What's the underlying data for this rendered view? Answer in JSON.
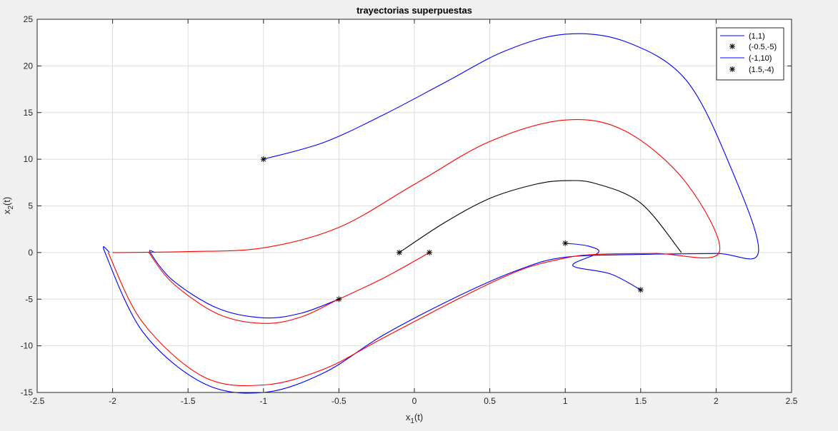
{
  "chart_data": {
    "type": "line",
    "title": "trayectorias superpuestas",
    "xlabel": {
      "base": "x",
      "sub": "1",
      "suffix": "(t)"
    },
    "ylabel": {
      "base": "x",
      "sub": "2",
      "suffix": "(t)"
    },
    "xlim": [
      -2.5,
      2.5
    ],
    "ylim": [
      -15,
      25
    ],
    "xticks": [
      -2.5,
      -2,
      -1.5,
      -1,
      -0.5,
      0,
      0.5,
      1,
      1.5,
      2,
      2.5
    ],
    "yticks": [
      -15,
      -10,
      -5,
      0,
      5,
      10,
      15,
      20,
      25
    ],
    "xtick_labels": [
      "-2.5",
      "-2",
      "-1.5",
      "-1",
      "-0.5",
      "0",
      "0.5",
      "1",
      "1.5",
      "2",
      "2.5"
    ],
    "ytick_labels": [
      "-15",
      "-10",
      "-5",
      "0",
      "5",
      "10",
      "15",
      "20",
      "25"
    ],
    "grid": true,
    "legend_position": "top-right",
    "legend": [
      {
        "label": "(1,1)",
        "kind": "line",
        "color": "#0000ff"
      },
      {
        "label": "(-0.5,-5)",
        "kind": "marker",
        "color": "#000000"
      },
      {
        "label": "(-1,10)",
        "kind": "line",
        "color": "#0000ff"
      },
      {
        "label": "(1.5,-4)",
        "kind": "marker",
        "color": "#000000"
      }
    ],
    "series": [
      {
        "color": "#0000ff",
        "points": [
          [
            -1,
            10
          ],
          [
            -0.6,
            11.8
          ],
          [
            -0.2,
            14.8
          ],
          [
            0.2,
            18.2
          ],
          [
            0.6,
            21.6
          ],
          [
            1,
            23.4
          ],
          [
            1.4,
            22.6
          ],
          [
            1.8,
            18.5
          ],
          [
            2.1,
            9
          ],
          [
            2.28,
            0
          ],
          [
            2,
            -0.1
          ],
          [
            1.5,
            -0.2
          ],
          [
            1,
            -0.5
          ],
          [
            0.7,
            -1.8
          ],
          [
            0.3,
            -4.6
          ],
          [
            -0.2,
            -8.8
          ],
          [
            -0.6,
            -12.9
          ],
          [
            -1,
            -15
          ],
          [
            -1.4,
            -14
          ],
          [
            -1.8,
            -8.5
          ],
          [
            -2.05,
            0
          ],
          [
            -2.02,
            0
          ]
        ]
      },
      {
        "color": "#0000ff",
        "points": [
          [
            1,
            1
          ],
          [
            1.15,
            0.7
          ],
          [
            1.22,
            0
          ],
          [
            1.05,
            -1.4
          ],
          [
            1.3,
            -2.3
          ],
          [
            1.5,
            -4
          ]
        ]
      },
      {
        "color": "#0000ff",
        "points": [
          [
            -0.5,
            -5
          ],
          [
            -0.75,
            -6.5
          ],
          [
            -1,
            -7
          ],
          [
            -1.3,
            -6
          ],
          [
            -1.6,
            -3
          ],
          [
            -1.75,
            0
          ],
          [
            -1.72,
            0
          ]
        ]
      },
      {
        "color": "#ff0000",
        "points": [
          [
            -2,
            0
          ],
          [
            -1.5,
            0.1
          ],
          [
            -1,
            0.5
          ],
          [
            -0.5,
            2.7
          ],
          [
            0,
            7.3
          ],
          [
            0.5,
            11.9
          ],
          [
            1,
            14.2
          ],
          [
            1.4,
            13
          ],
          [
            1.8,
            7.5
          ],
          [
            2.02,
            0
          ],
          [
            1.6,
            -0.1
          ],
          [
            1.2,
            -0.2
          ],
          [
            1,
            -0.6
          ],
          [
            0.7,
            -1.9
          ],
          [
            0.3,
            -4.9
          ],
          [
            -0.2,
            -9.1
          ],
          [
            -0.6,
            -12.5
          ],
          [
            -1,
            -14.2
          ],
          [
            -1.4,
            -13.3
          ],
          [
            -1.8,
            -7.5
          ],
          [
            -2.03,
            0
          ]
        ]
      },
      {
        "color": "#ff0000",
        "points": [
          [
            0.1,
            0
          ],
          [
            -0.2,
            -2.7
          ],
          [
            -0.5,
            -5
          ],
          [
            -0.75,
            -6.9
          ],
          [
            -1,
            -7.6
          ],
          [
            -1.3,
            -6.6
          ],
          [
            -1.6,
            -3.3
          ],
          [
            -1.76,
            0
          ]
        ]
      },
      {
        "color": "#000000",
        "points": [
          [
            -0.1,
            0
          ],
          [
            0.2,
            3.2
          ],
          [
            0.5,
            5.8
          ],
          [
            0.8,
            7.3
          ],
          [
            1,
            7.7
          ],
          [
            1.2,
            7.4
          ],
          [
            1.5,
            5.3
          ],
          [
            1.77,
            0
          ]
        ]
      }
    ],
    "markers": [
      {
        "x": -1,
        "y": 10
      },
      {
        "x": -0.1,
        "y": 0
      },
      {
        "x": 0.1,
        "y": 0
      },
      {
        "x": -0.5,
        "y": -5
      },
      {
        "x": 1,
        "y": 1
      },
      {
        "x": 1.5,
        "y": -4
      }
    ]
  }
}
